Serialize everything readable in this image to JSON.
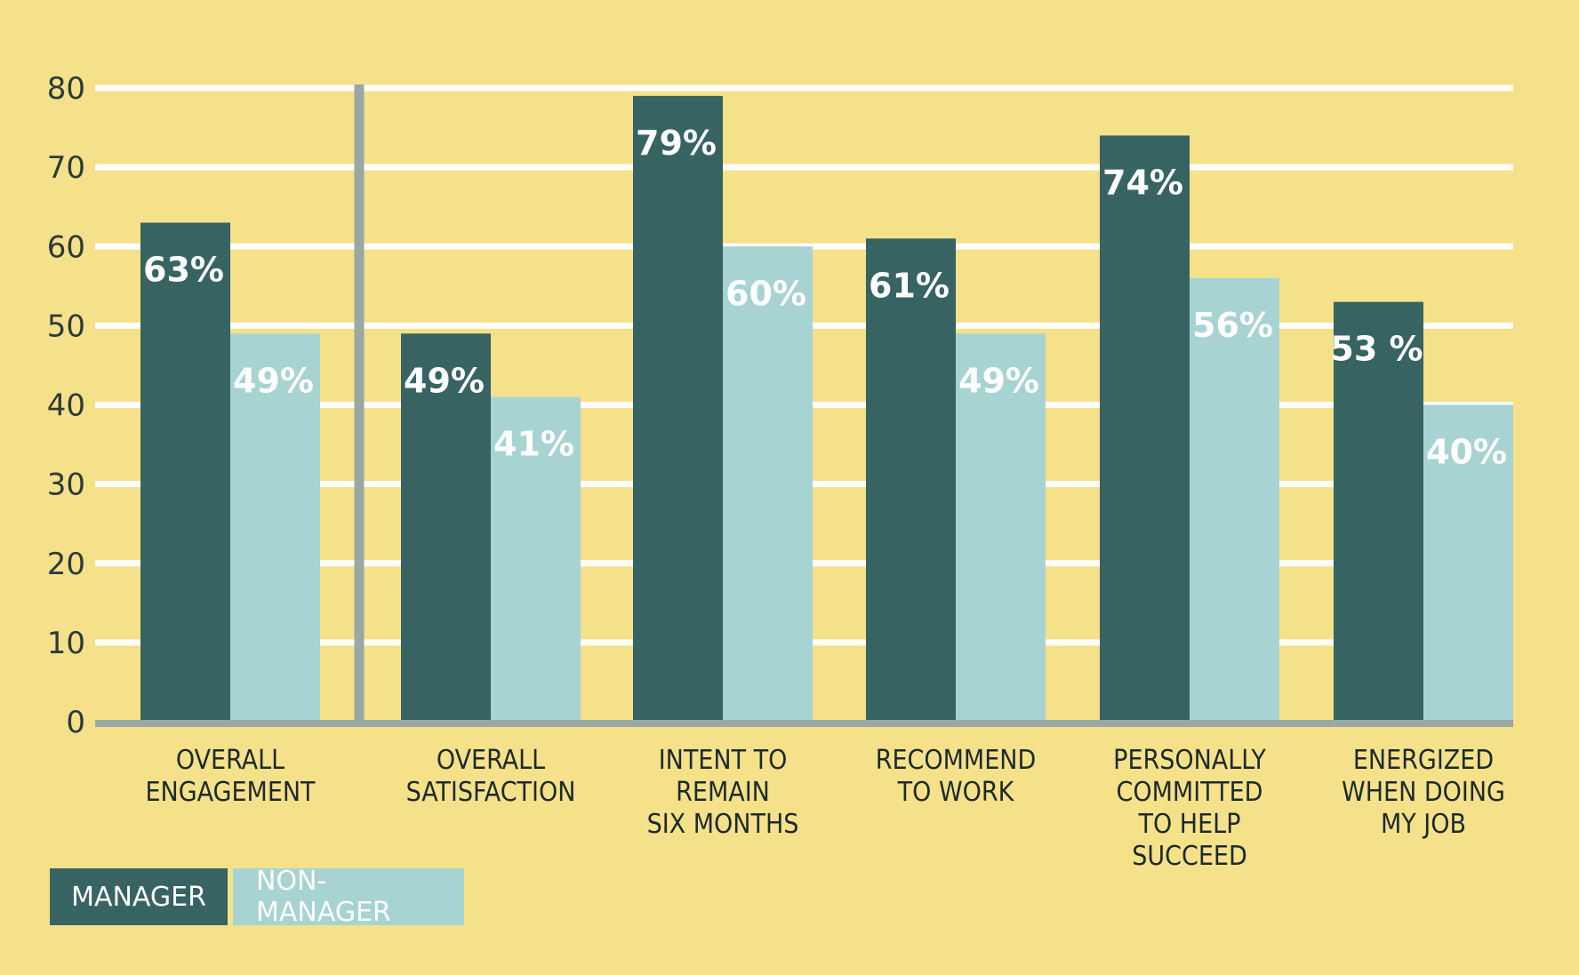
{
  "chart_data": {
    "type": "bar",
    "categories": [
      "OVERALL\nENGAGEMENT",
      "OVERALL\nSATISFACTION",
      "INTENT TO\nREMAIN\nSIX MONTHS",
      "RECOMMEND\nTO WORK",
      "PERSONALLY\nCOMMITTED\nTO HELP\nSUCCEED",
      "ENERGIZED\nWHEN DOING\nMY JOB"
    ],
    "series": [
      {
        "name": "MANAGER",
        "values": [
          63,
          49,
          79,
          61,
          74,
          53
        ],
        "labels": [
          "63%",
          "49%",
          "79%",
          "61%",
          "74%",
          "53 %"
        ],
        "color": "#376363"
      },
      {
        "name": "NON-MANAGER",
        "values": [
          49,
          41,
          60,
          49,
          56,
          40
        ],
        "labels": [
          "49%",
          "41%",
          "60%",
          "49%",
          "56%",
          "40%"
        ],
        "color": "#a8d3d3"
      }
    ],
    "yticks": [
      "0",
      "10",
      "20",
      "30",
      "40",
      "50",
      "60",
      "70",
      "80"
    ],
    "ylim": [
      0,
      80
    ],
    "grid": true,
    "legend_placement": "bottom-left",
    "colors": {
      "background": "#f4e18a",
      "gridline": "#ffffff",
      "axis": "#9aa8a4",
      "divider": "#9aa8a4"
    }
  },
  "legend": {
    "manager": "MANAGER",
    "non_manager": "NON-MANAGER"
  }
}
